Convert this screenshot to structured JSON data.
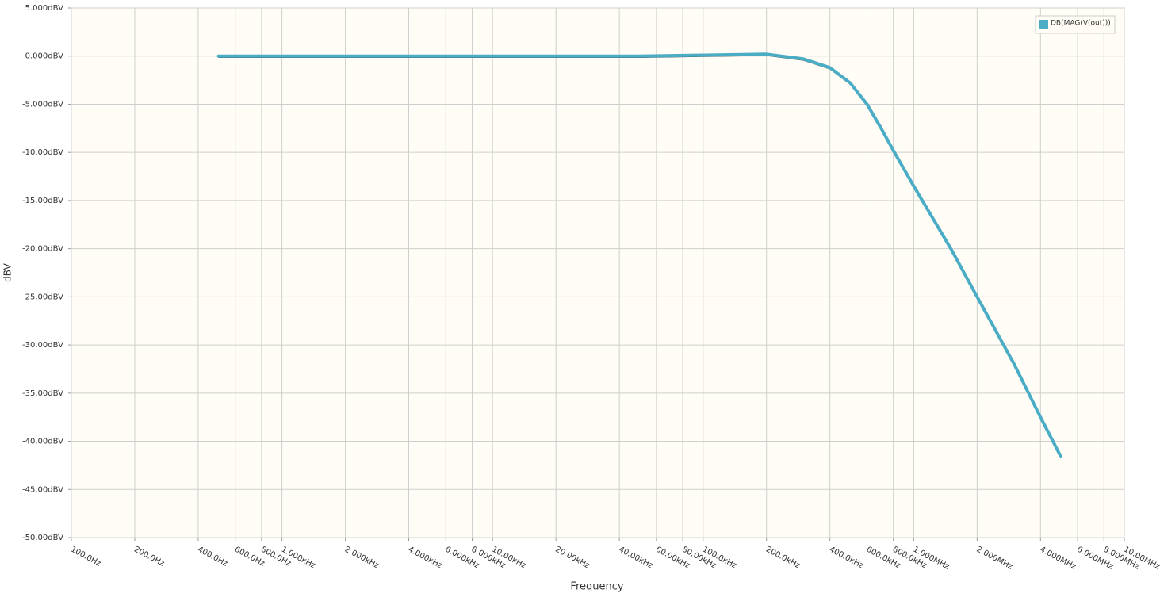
{
  "chart_data": {
    "type": "line",
    "x_label": "Frequency",
    "y_label": "dBV",
    "x_scale": "log",
    "grid": true,
    "legend_position": "top-right",
    "xlim": [
      100,
      10000000
    ],
    "ylim": [
      -50,
      5
    ],
    "xticks": [
      {
        "value": 100,
        "label": "100.0Hz"
      },
      {
        "value": 200,
        "label": "200.0Hz"
      },
      {
        "value": 400,
        "label": "400.0Hz"
      },
      {
        "value": 600,
        "label": "600.0Hz"
      },
      {
        "value": 800,
        "label": "800.0Hz"
      },
      {
        "value": 1000,
        "label": "1.000kHz"
      },
      {
        "value": 2000,
        "label": "2.000kHz"
      },
      {
        "value": 4000,
        "label": "4.000kHz"
      },
      {
        "value": 6000,
        "label": "6.000kHz"
      },
      {
        "value": 8000,
        "label": "8.000kHz"
      },
      {
        "value": 10000,
        "label": "10.00kHz"
      },
      {
        "value": 20000,
        "label": "20.00kHz"
      },
      {
        "value": 40000,
        "label": "40.00kHz"
      },
      {
        "value": 60000,
        "label": "60.00kHz"
      },
      {
        "value": 80000,
        "label": "80.00kHz"
      },
      {
        "value": 100000,
        "label": "100.0kHz"
      },
      {
        "value": 200000,
        "label": "200.0kHz"
      },
      {
        "value": 400000,
        "label": "400.0kHz"
      },
      {
        "value": 600000,
        "label": "600.0kHz"
      },
      {
        "value": 800000,
        "label": "800.0kHz"
      },
      {
        "value": 1000000,
        "label": "1.000MHz"
      },
      {
        "value": 2000000,
        "label": "2.000MHz"
      },
      {
        "value": 4000000,
        "label": "4.000MHz"
      },
      {
        "value": 6000000,
        "label": "6.000MHz"
      },
      {
        "value": 8000000,
        "label": "8.000MHz"
      },
      {
        "value": 10000000,
        "label": "10.00MHz"
      }
    ],
    "yticks": [
      {
        "value": 5,
        "label": "5.000dBV"
      },
      {
        "value": 0,
        "label": "0.000dBV"
      },
      {
        "value": -5,
        "label": "-5.000dBV"
      },
      {
        "value": -10,
        "label": "-10.00dBV"
      },
      {
        "value": -15,
        "label": "-15.00dBV"
      },
      {
        "value": -20,
        "label": "-20.00dBV"
      },
      {
        "value": -25,
        "label": "-25.00dBV"
      },
      {
        "value": -30,
        "label": "-30.00dBV"
      },
      {
        "value": -35,
        "label": "-35.00dBV"
      },
      {
        "value": -40,
        "label": "-40.00dBV"
      },
      {
        "value": -45,
        "label": "-45.00dBV"
      },
      {
        "value": -50,
        "label": "-50.00dBV"
      }
    ],
    "x": [
      500,
      1000,
      10000,
      50000,
      100000,
      200000,
      300000,
      400000,
      500000,
      600000,
      700000,
      800000,
      1000000,
      1500000,
      2000000,
      3000000,
      4000000,
      5000000
    ],
    "series": [
      {
        "name": "DB(MAG(V(out)))",
        "color": "#4bacc6",
        "values": [
          0,
          0,
          0,
          0,
          0.1,
          0.2,
          -0.3,
          -1.2,
          -2.8,
          -5,
          -7.5,
          -9.8,
          -13.5,
          -20,
          -25,
          -32,
          -37.5,
          -41.6
        ]
      }
    ]
  }
}
